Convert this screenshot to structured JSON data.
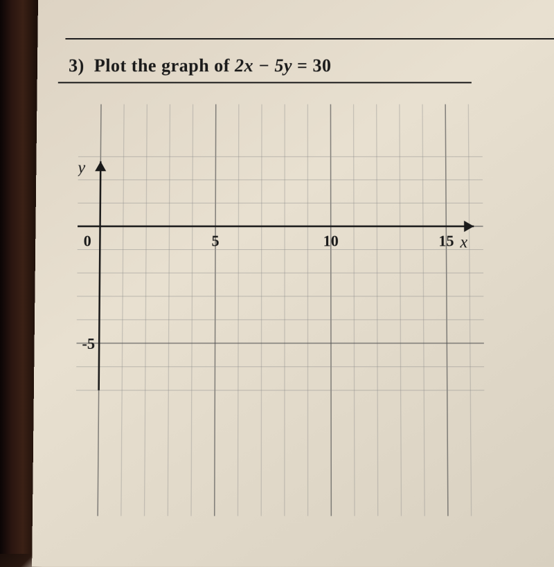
{
  "question": {
    "number": "3)",
    "prompt": "Plot the graph of",
    "equation_lhs": "2x − 5y",
    "equation_rhs": "= 30"
  },
  "graph": {
    "type": "coordinate-grid",
    "x_axis_label": "x",
    "y_axis_label": "y",
    "origin_label": "0",
    "x_ticks": [
      {
        "value": 5,
        "label": "5"
      },
      {
        "value": 10,
        "label": "10"
      },
      {
        "value": 15,
        "label": "15"
      }
    ],
    "y_ticks": [
      {
        "value": -5,
        "label": "-5"
      }
    ],
    "xlim": [
      -1,
      17
    ],
    "ylim": [
      -7,
      3
    ],
    "major_x_lines": [
      0,
      5,
      10,
      15
    ],
    "major_y_lines": [
      -5,
      0
    ],
    "cell_size": 33,
    "background_color": "#e0d8c8",
    "grid_minor_color": "#888888",
    "grid_major_color": "#555555",
    "axis_color": "#1a1a1a",
    "axis_stroke_width": 2.5,
    "grid_minor_stroke_width": 1,
    "grid_major_stroke_width": 1.5,
    "label_fontsize": 22,
    "var_fontsize": 24
  }
}
